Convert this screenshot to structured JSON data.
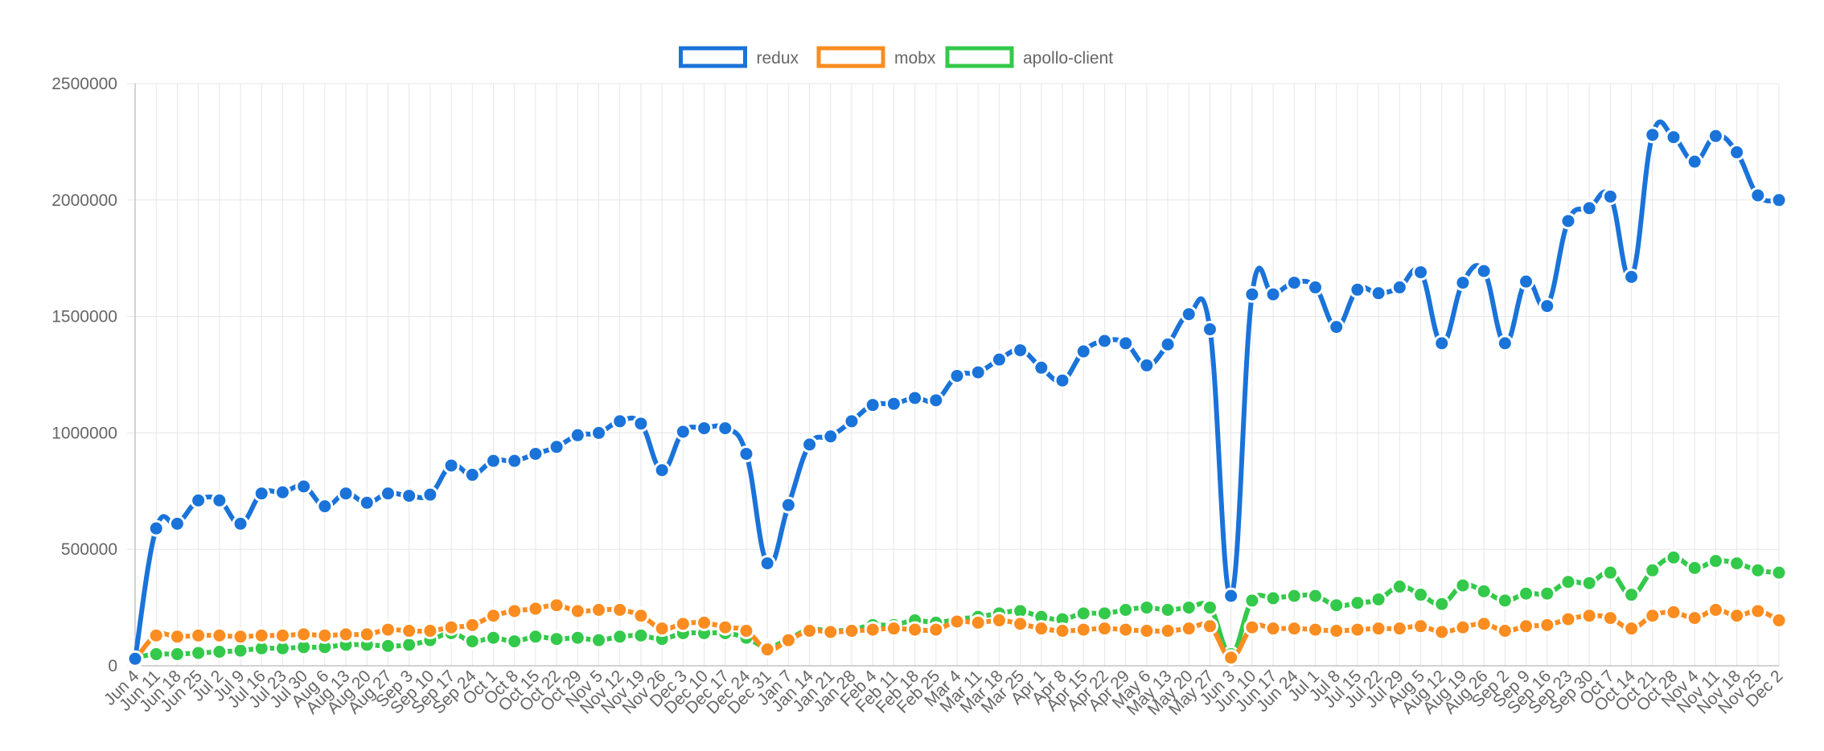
{
  "chart_data": {
    "type": "line",
    "title": "",
    "xlabel": "",
    "ylabel": "",
    "legend_position": "top-center",
    "grid": true,
    "ylim": [
      0,
      2500000
    ],
    "y_ticks": [
      0,
      500000,
      1000000,
      1500000,
      2000000,
      2500000
    ],
    "y_tick_labels": [
      "0",
      "500000",
      "1000000",
      "1500000",
      "2000000",
      "2500000"
    ],
    "x": [
      "Jun 4",
      "Jun 11",
      "Jun 18",
      "Jun 25",
      "Jul 2",
      "Jul 9",
      "Jul 16",
      "Jul 23",
      "Jul 30",
      "Aug 6",
      "Aug 13",
      "Aug 20",
      "Aug 27",
      "Sep 3",
      "Sep 10",
      "Sep 17",
      "Sep 24",
      "Oct 1",
      "Oct 8",
      "Oct 15",
      "Oct 22",
      "Oct 29",
      "Nov 5",
      "Nov 12",
      "Nov 19",
      "Nov 26",
      "Dec 3",
      "Dec 10",
      "Dec 17",
      "Dec 24",
      "Dec 31",
      "Jan 7",
      "Jan 14",
      "Jan 21",
      "Jan 28",
      "Feb 4",
      "Feb 11",
      "Feb 18",
      "Feb 25",
      "Mar 4",
      "Mar 11",
      "Mar 18",
      "Mar 25",
      "Apr 1",
      "Apr 8",
      "Apr 15",
      "Apr 22",
      "Apr 29",
      "May 6",
      "May 13",
      "May 20",
      "May 27",
      "Jun 3",
      "Jun 10",
      "Jun 17",
      "Jun 24",
      "Jul 1",
      "Jul 8",
      "Jul 15",
      "Jul 22",
      "Jul 29",
      "Aug 5",
      "Aug 12",
      "Aug 19",
      "Aug 26",
      "Sep 2",
      "Sep 9",
      "Sep 16",
      "Sep 23",
      "Sep 30",
      "Oct 7",
      "Oct 14",
      "Oct 21",
      "Oct 28",
      "Nov 4",
      "Nov 11",
      "Nov 18",
      "Nov 25",
      "Dec 2"
    ],
    "series": [
      {
        "name": "redux",
        "color": "#1a73d9",
        "values": [
          30000,
          590000,
          610000,
          710000,
          710000,
          610000,
          740000,
          745000,
          770000,
          685000,
          740000,
          700000,
          740000,
          730000,
          735000,
          860000,
          820000,
          880000,
          880000,
          910000,
          940000,
          990000,
          1000000,
          1050000,
          1040000,
          840000,
          1005000,
          1020000,
          1020000,
          910000,
          440000,
          690000,
          950000,
          985000,
          1050000,
          1120000,
          1125000,
          1150000,
          1140000,
          1245000,
          1260000,
          1315000,
          1355000,
          1280000,
          1225000,
          1350000,
          1395000,
          1385000,
          1290000,
          1380000,
          1510000,
          1445000,
          300000,
          1595000,
          1595000,
          1645000,
          1625000,
          1455000,
          1615000,
          1600000,
          1625000,
          1690000,
          1385000,
          1645000,
          1695000,
          1385000,
          1650000,
          1545000,
          1910000,
          1965000,
          2015000,
          1670000,
          2280000,
          2270000,
          2165000,
          2275000,
          2205000,
          2020000,
          2000000
        ]
      },
      {
        "name": "mobx",
        "color": "#fb8c1f",
        "values": [
          25000,
          130000,
          125000,
          130000,
          130000,
          125000,
          130000,
          130000,
          135000,
          130000,
          135000,
          135000,
          155000,
          150000,
          150000,
          165000,
          175000,
          215000,
          235000,
          245000,
          260000,
          235000,
          240000,
          240000,
          215000,
          160000,
          180000,
          185000,
          165000,
          150000,
          70000,
          110000,
          150000,
          145000,
          150000,
          155000,
          160000,
          155000,
          155000,
          190000,
          185000,
          195000,
          180000,
          160000,
          150000,
          155000,
          160000,
          155000,
          150000,
          150000,
          160000,
          170000,
          35000,
          165000,
          160000,
          160000,
          155000,
          150000,
          155000,
          160000,
          160000,
          170000,
          145000,
          165000,
          180000,
          150000,
          170000,
          175000,
          200000,
          215000,
          205000,
          160000,
          215000,
          230000,
          205000,
          240000,
          215000,
          235000,
          195000
        ]
      },
      {
        "name": "apollo-client",
        "color": "#33c94a",
        "values": [
          35000,
          50000,
          50000,
          55000,
          60000,
          65000,
          75000,
          75000,
          80000,
          80000,
          90000,
          90000,
          85000,
          90000,
          110000,
          140000,
          105000,
          120000,
          105000,
          125000,
          115000,
          120000,
          110000,
          125000,
          130000,
          115000,
          140000,
          140000,
          140000,
          120000,
          80000,
          115000,
          155000,
          150000,
          155000,
          175000,
          175000,
          195000,
          185000,
          200000,
          210000,
          225000,
          235000,
          210000,
          200000,
          225000,
          225000,
          240000,
          250000,
          240000,
          250000,
          250000,
          50000,
          280000,
          290000,
          300000,
          300000,
          260000,
          270000,
          285000,
          340000,
          305000,
          265000,
          345000,
          320000,
          280000,
          310000,
          310000,
          360000,
          355000,
          400000,
          305000,
          410000,
          465000,
          420000,
          450000,
          440000,
          410000,
          400000
        ]
      }
    ]
  }
}
